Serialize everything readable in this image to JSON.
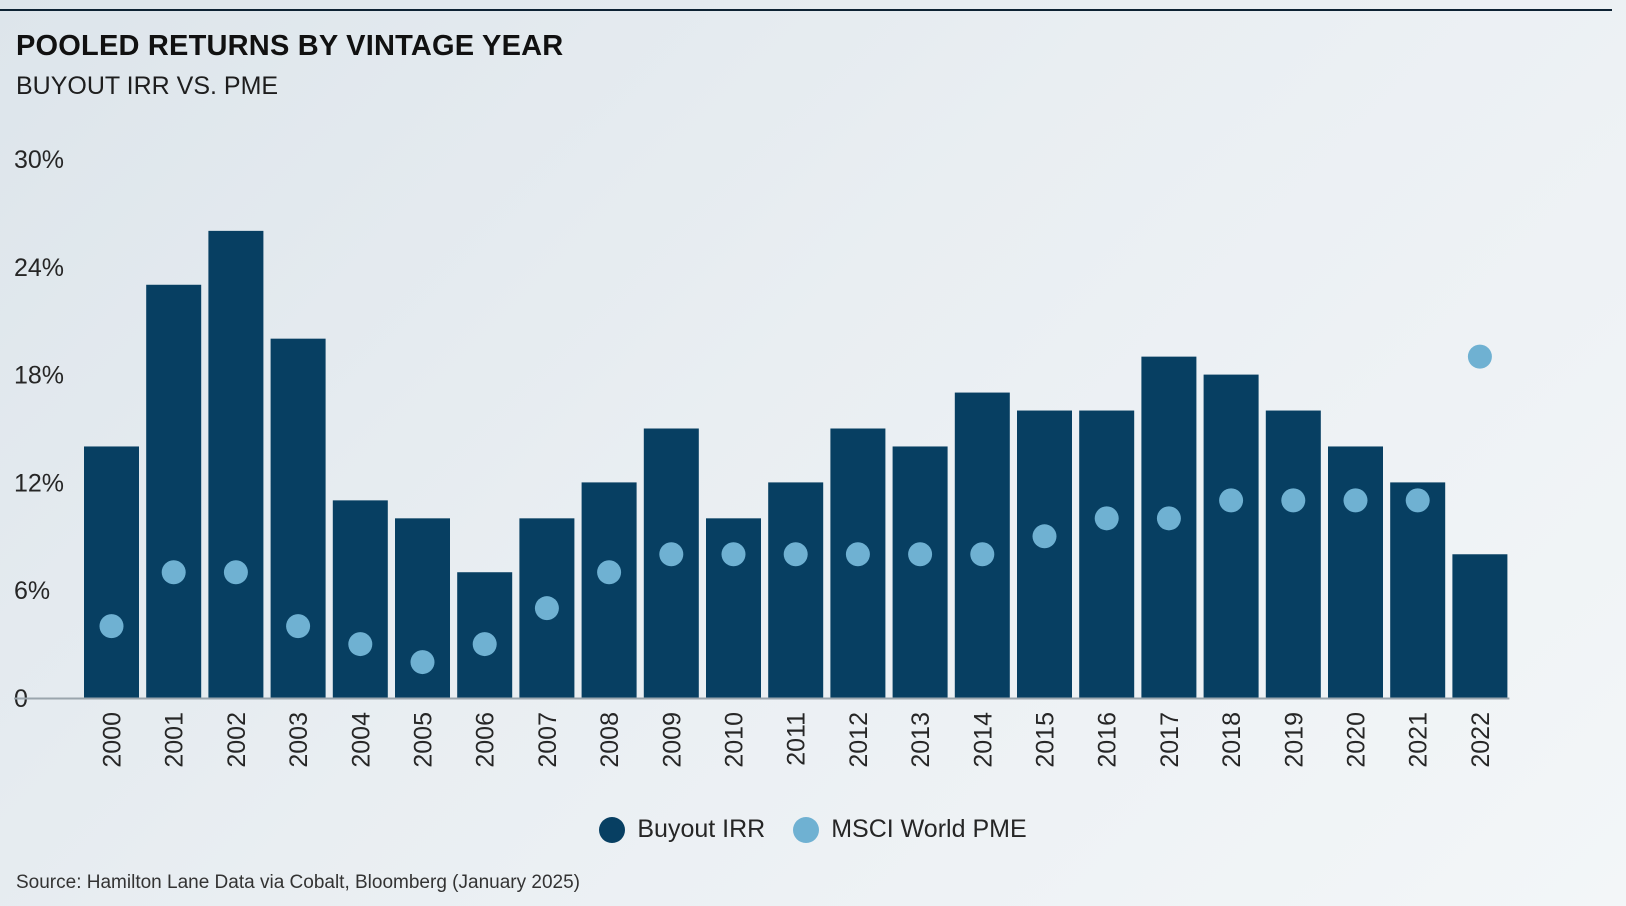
{
  "header": {
    "title": "POOLED RETURNS BY VINTAGE YEAR",
    "subtitle": "BUYOUT IRR VS. PME"
  },
  "legend": {
    "buyout_label": "Buyout IRR",
    "pme_label": "MSCI World PME"
  },
  "footer": {
    "source": "Source: Hamilton Lane Data via Cobalt, Bloomberg (January 2025)"
  },
  "colors": {
    "bar": "#073f62",
    "dot": "#6fb1d2",
    "axis": "#9aa5ad",
    "text": "#262626"
  },
  "chart_data": {
    "type": "bar",
    "title": "POOLED RETURNS BY VINTAGE YEAR",
    "subtitle": "BUYOUT IRR VS. PME",
    "xlabel": "",
    "ylabel": "",
    "ylim": [
      0,
      30
    ],
    "yticks": [
      {
        "value": 0,
        "label": "0"
      },
      {
        "value": 6,
        "label": "6%"
      },
      {
        "value": 12,
        "label": "12%"
      },
      {
        "value": 18,
        "label": "18%"
      },
      {
        "value": 24,
        "label": "24%"
      },
      {
        "value": 30,
        "label": "30%"
      }
    ],
    "grid": false,
    "legend_position": "bottom-center",
    "categories": [
      "2000",
      "2001",
      "2002",
      "2003",
      "2004",
      "2005",
      "2006",
      "2007",
      "2008",
      "2009",
      "2010",
      "2011",
      "2012",
      "2013",
      "2014",
      "2015",
      "2016",
      "2017",
      "2018",
      "2019",
      "2020",
      "2021",
      "2022"
    ],
    "series": [
      {
        "name": "Buyout IRR",
        "type": "bar",
        "values": [
          14,
          23,
          26,
          20,
          11,
          10,
          7,
          10,
          12,
          15,
          10,
          12,
          15,
          14,
          17,
          16,
          16,
          19,
          18,
          16,
          14,
          12,
          8
        ]
      },
      {
        "name": "MSCI World PME",
        "type": "scatter",
        "values": [
          4,
          7,
          7,
          4,
          3,
          2,
          3,
          5,
          7,
          8,
          8,
          8,
          8,
          8,
          8,
          9,
          10,
          10,
          11,
          11,
          11,
          11,
          19
        ]
      }
    ]
  }
}
